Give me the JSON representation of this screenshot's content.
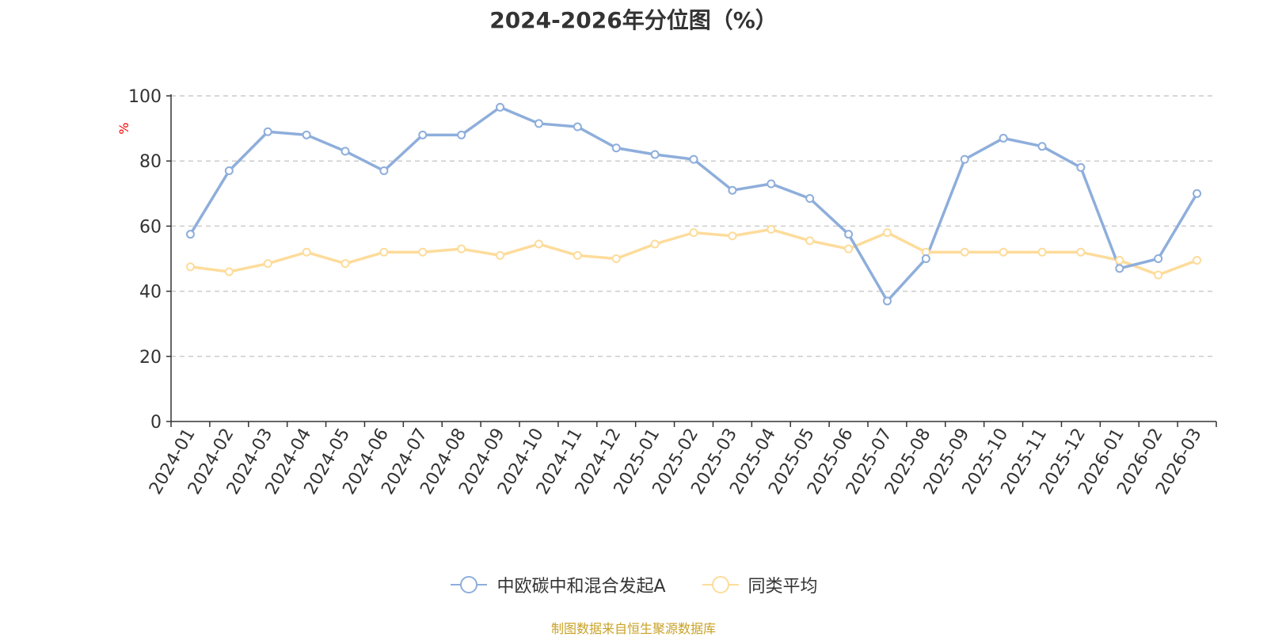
{
  "chart_data": {
    "type": "line",
    "title": "2024-2026年分位图（%）",
    "ylabel": "%",
    "xlabel": "",
    "ylim": [
      0,
      100
    ],
    "yticks": [
      0,
      20,
      40,
      60,
      80,
      100
    ],
    "grid": true,
    "legend_position": "bottom-center",
    "categories": [
      "2024-01",
      "2024-02",
      "2024-03",
      "2024-04",
      "2024-05",
      "2024-06",
      "2024-07",
      "2024-08",
      "2024-09",
      "2024-10",
      "2024-11",
      "2024-12",
      "2025-01",
      "2025-02",
      "2025-03",
      "2025-04",
      "2025-05",
      "2025-06",
      "2025-07",
      "2025-08",
      "2025-09",
      "2025-10",
      "2025-11",
      "2025-12",
      "2026-01",
      "2026-02",
      "2026-03"
    ],
    "series": [
      {
        "name": "中欧碳中和混合发起A",
        "color": "#8eaedb",
        "values": [
          57.5,
          77,
          89,
          88,
          83,
          77,
          88,
          88,
          96.5,
          91.5,
          90.5,
          84,
          82,
          80.5,
          71,
          73,
          68.5,
          57.5,
          37,
          50,
          80.5,
          87,
          84.5,
          78,
          47,
          50,
          70
        ]
      },
      {
        "name": "同类平均",
        "color": "#fddc9b",
        "values": [
          47.5,
          46,
          48.5,
          52,
          48.5,
          52,
          52,
          53,
          51,
          54.5,
          51,
          50,
          54.5,
          58,
          57,
          59,
          55.5,
          53,
          58,
          52,
          52,
          52,
          52,
          52,
          49.5,
          45,
          49.5
        ]
      }
    ]
  },
  "source_text": "制图数据来自恒生聚源数据库",
  "colors": {
    "title": "#333333",
    "axis": "#333333",
    "grid": "#cccccc",
    "ylabel": "#ff0000",
    "source": "#c9a227"
  }
}
